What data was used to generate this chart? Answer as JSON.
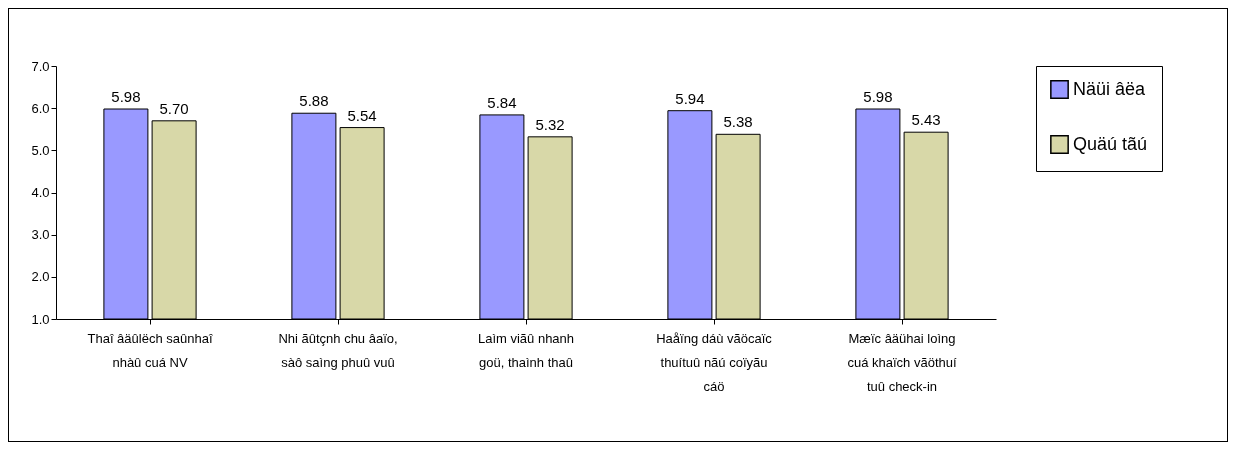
{
  "chart_data": {
    "type": "bar",
    "categories": [
      "Thaî âäûlëch saûnhaî\nnhàû cuá NV",
      "Nhi ãûtçnh chu âaïo,\nsàô saìng phuû vuû",
      "Laìm viãû nhanh\ngoü, thaình thaû",
      "Haåïng dáù vãöcaïc\nthuítuû nãú coïyãu\ncáö",
      "Mæïc âäühai loìng\ncuá khaïch vãöthuí\ntuû check-in"
    ],
    "series": [
      {
        "name": "Näüi âëa",
        "color": "#9999ff",
        "values": [
          5.98,
          5.88,
          5.84,
          5.94,
          5.98
        ],
        "value_labels": [
          "5.98",
          "5.88",
          "5.84",
          "5.94",
          "5.98"
        ]
      },
      {
        "name": "Quäú tãú",
        "color": "#d8d8a8",
        "values": [
          5.7,
          5.54,
          5.32,
          5.38,
          5.43
        ],
        "value_labels": [
          "5.70",
          "5.54",
          "5.32",
          "5.38",
          "5.43"
        ]
      }
    ],
    "ylim": [
      1,
      7
    ],
    "yticks": [
      {
        "value": 1,
        "label": "1.0"
      },
      {
        "value": 2,
        "label": "2.0"
      },
      {
        "value": 3,
        "label": "3.0"
      },
      {
        "value": 4,
        "label": "4.0"
      },
      {
        "value": 5,
        "label": "5.0"
      },
      {
        "value": 6,
        "label": "6.0"
      },
      {
        "value": 7,
        "label": "7.0"
      }
    ],
    "grid": false,
    "legend": "right"
  }
}
